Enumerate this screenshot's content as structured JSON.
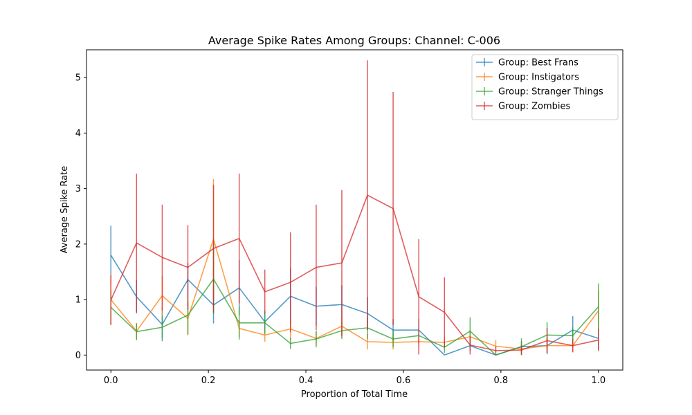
{
  "chart_data": {
    "type": "line",
    "title": "Average Spike Rates Among Groups: Channel: C-006",
    "xlabel": "Proportion of Total Time",
    "ylabel": "Average Spike Rate",
    "xlim": [
      -0.05,
      1.05
    ],
    "ylim": [
      -0.27,
      5.5
    ],
    "xticks": [
      0.0,
      0.2,
      0.4,
      0.6,
      0.8,
      1.0
    ],
    "xtick_labels": [
      "0.0",
      "0.2",
      "0.4",
      "0.6",
      "0.8",
      "1.0"
    ],
    "yticks": [
      0,
      1,
      2,
      3,
      4,
      5
    ],
    "ytick_labels": [
      "0",
      "1",
      "2",
      "3",
      "4",
      "5"
    ],
    "grid": false,
    "legend_position": "top-right",
    "x": [
      0.0,
      0.0526,
      0.1053,
      0.1579,
      0.2105,
      0.2632,
      0.3158,
      0.3684,
      0.4211,
      0.4737,
      0.5263,
      0.5789,
      0.6316,
      0.6842,
      0.7368,
      0.7895,
      0.8421,
      0.8947,
      0.9474,
      1.0
    ],
    "series": [
      {
        "name": "Group: Best Frans",
        "color": "#1f77b4",
        "values": [
          1.8,
          1.05,
          0.55,
          1.36,
          0.9,
          1.21,
          0.6,
          1.06,
          0.88,
          0.91,
          0.75,
          0.45,
          0.45,
          0.0,
          0.17,
          0.0,
          0.15,
          0.17,
          0.45,
          0.3
        ],
        "errors": [
          0.53,
          0.3,
          0.3,
          0.3,
          0.33,
          0.5,
          0.2,
          0.5,
          0.35,
          0.35,
          0.3,
          0.2,
          0.2,
          0.0,
          0.1,
          0.0,
          0.1,
          0.15,
          0.25,
          0.2
        ]
      },
      {
        "name": "Group: Instigators",
        "color": "#ff7f0e",
        "values": [
          1.0,
          0.43,
          1.07,
          0.66,
          2.09,
          0.48,
          0.36,
          0.47,
          0.3,
          0.52,
          0.24,
          0.23,
          0.24,
          0.23,
          0.33,
          0.16,
          0.11,
          0.17,
          0.17,
          0.8
        ],
        "errors": [
          0.45,
          0.15,
          0.35,
          0.3,
          1.08,
          0.15,
          0.12,
          0.2,
          0.12,
          0.2,
          0.14,
          0.13,
          0.13,
          0.1,
          0.12,
          0.11,
          0.08,
          0.12,
          0.12,
          0.35
        ]
      },
      {
        "name": "Group: Stranger Things",
        "color": "#2ca02c",
        "values": [
          0.86,
          0.42,
          0.5,
          0.72,
          1.37,
          0.58,
          0.58,
          0.21,
          0.29,
          0.44,
          0.49,
          0.29,
          0.35,
          0.14,
          0.43,
          0.0,
          0.15,
          0.36,
          0.35,
          0.87
        ],
        "errors": [
          0.3,
          0.15,
          0.2,
          0.35,
          0.63,
          0.3,
          0.2,
          0.1,
          0.15,
          0.15,
          0.2,
          0.15,
          0.15,
          0.1,
          0.25,
          0.0,
          0.15,
          0.23,
          0.15,
          0.42
        ]
      },
      {
        "name": "Group: Zombies",
        "color": "#d62728",
        "values": [
          0.99,
          2.02,
          1.76,
          1.58,
          1.92,
          2.1,
          1.14,
          1.31,
          1.58,
          1.66,
          2.88,
          2.64,
          1.05,
          0.77,
          0.18,
          0.08,
          0.09,
          0.26,
          0.17,
          0.27
        ],
        "errors": [
          0.45,
          1.25,
          0.95,
          0.76,
          1.15,
          1.17,
          0.4,
          0.9,
          1.13,
          1.31,
          2.43,
          2.1,
          1.04,
          0.63,
          0.17,
          0.07,
          0.09,
          0.23,
          0.12,
          0.2
        ]
      }
    ]
  }
}
